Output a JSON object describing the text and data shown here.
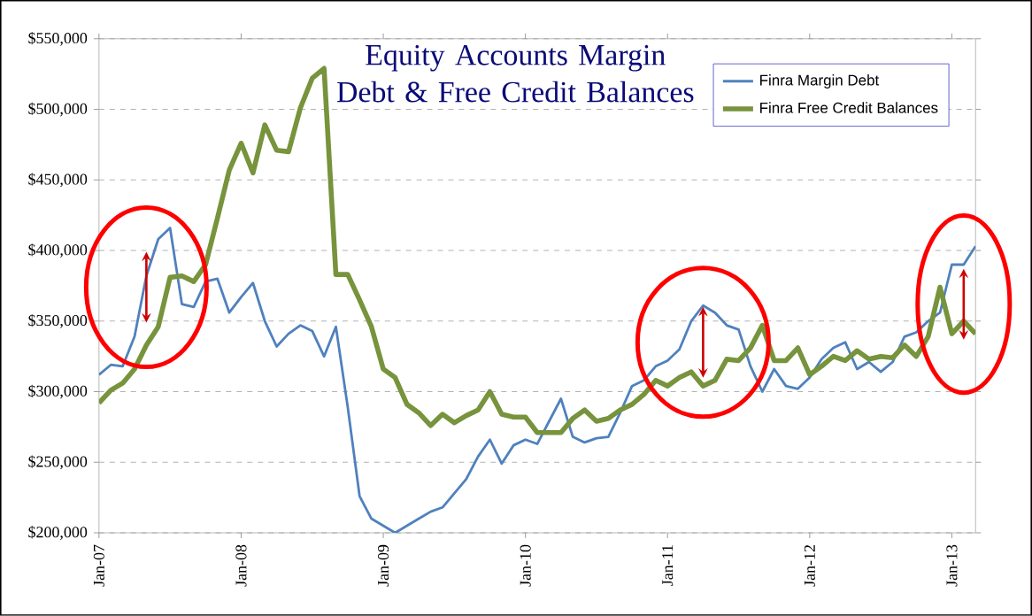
{
  "chart_data": {
    "type": "line",
    "title": "Equity Accounts Margin Debt & Free Credit Balances",
    "x": [
      "2007-01",
      "2007-02",
      "2007-03",
      "2007-04",
      "2007-05",
      "2007-06",
      "2007-07",
      "2007-08",
      "2007-09",
      "2007-10",
      "2007-11",
      "2007-12",
      "2008-01",
      "2008-02",
      "2008-03",
      "2008-04",
      "2008-05",
      "2008-06",
      "2008-07",
      "2008-08",
      "2008-09",
      "2008-10",
      "2008-11",
      "2008-12",
      "2009-01",
      "2009-02",
      "2009-03",
      "2009-04",
      "2009-05",
      "2009-06",
      "2009-07",
      "2009-08",
      "2009-09",
      "2009-10",
      "2009-11",
      "2009-12",
      "2010-01",
      "2010-02",
      "2010-03",
      "2010-04",
      "2010-05",
      "2010-06",
      "2010-07",
      "2010-08",
      "2010-09",
      "2010-10",
      "2010-11",
      "2010-12",
      "2011-01",
      "2011-02",
      "2011-03",
      "2011-04",
      "2011-05",
      "2011-06",
      "2011-07",
      "2011-08",
      "2011-09",
      "2011-10",
      "2011-11",
      "2011-12",
      "2012-01",
      "2012-02",
      "2012-03",
      "2012-04",
      "2012-05",
      "2012-06",
      "2012-07",
      "2012-08",
      "2012-09",
      "2012-10",
      "2012-11",
      "2012-12",
      "2013-01",
      "2013-02",
      "2013-03"
    ],
    "series": [
      {
        "name": "Finra Margin Debt",
        "color": "#4f81bd",
        "values": [
          312000,
          319000,
          318000,
          339000,
          382000,
          408000,
          416000,
          362000,
          360000,
          378000,
          380000,
          356000,
          367000,
          377000,
          350000,
          332000,
          341000,
          347000,
          343000,
          325000,
          346000,
          289000,
          226000,
          210000,
          205000,
          200000,
          205000,
          210000,
          215000,
          218000,
          228000,
          238000,
          254000,
          266000,
          249000,
          262000,
          266000,
          263000,
          279000,
          295000,
          268000,
          264000,
          267000,
          268000,
          285000,
          304000,
          308000,
          318000,
          322000,
          330000,
          350000,
          361000,
          356000,
          347000,
          344000,
          318000,
          300000,
          316000,
          304000,
          302000,
          310000,
          323000,
          331000,
          335000,
          316000,
          321000,
          314000,
          321000,
          339000,
          342000,
          350000,
          356000,
          390000,
          390000,
          403000
        ]
      },
      {
        "name": "Finra Free Credit Balances",
        "color": "#77933c",
        "values": [
          292000,
          301000,
          306000,
          316000,
          333000,
          346000,
          381000,
          382000,
          378000,
          390000,
          423000,
          457000,
          476000,
          455000,
          489000,
          471000,
          470000,
          501000,
          522000,
          529000,
          383000,
          383000,
          365000,
          346000,
          316000,
          310000,
          291000,
          285000,
          276000,
          284000,
          278000,
          283000,
          287000,
          300000,
          284000,
          282000,
          282000,
          271000,
          271000,
          271000,
          281000,
          287000,
          279000,
          281000,
          287000,
          291000,
          298000,
          308000,
          304000,
          310000,
          314000,
          304000,
          308000,
          323000,
          322000,
          331000,
          347000,
          322000,
          322000,
          331000,
          312000,
          318000,
          325000,
          322000,
          329000,
          323000,
          325000,
          324000,
          333000,
          325000,
          339000,
          374000,
          341000,
          350000,
          341000
        ]
      }
    ],
    "xlim": [
      "2007-01",
      "2013-03"
    ],
    "xticks": [
      {
        "value": "2007-01",
        "label": "Jan-07"
      },
      {
        "value": "2008-01",
        "label": "Jan-08"
      },
      {
        "value": "2009-01",
        "label": "Jan-09"
      },
      {
        "value": "2010-01",
        "label": "Jan-10"
      },
      {
        "value": "2011-01",
        "label": "Jan-11"
      },
      {
        "value": "2012-01",
        "label": "Jan-12"
      },
      {
        "value": "2013-01",
        "label": "Jan-13"
      }
    ],
    "ylim": [
      200000,
      550000
    ],
    "yticks": [
      {
        "value": 200000,
        "label": "$200,000"
      },
      {
        "value": 250000,
        "label": "$250,000"
      },
      {
        "value": 300000,
        "label": "$300,000"
      },
      {
        "value": 350000,
        "label": "$350,000"
      },
      {
        "value": 400000,
        "label": "$400,000"
      },
      {
        "value": 450000,
        "label": "$450,000"
      },
      {
        "value": 500000,
        "label": "$500,000"
      },
      {
        "value": 550000,
        "label": "$550,000"
      }
    ],
    "grid": "y",
    "legend": "top right"
  }
}
